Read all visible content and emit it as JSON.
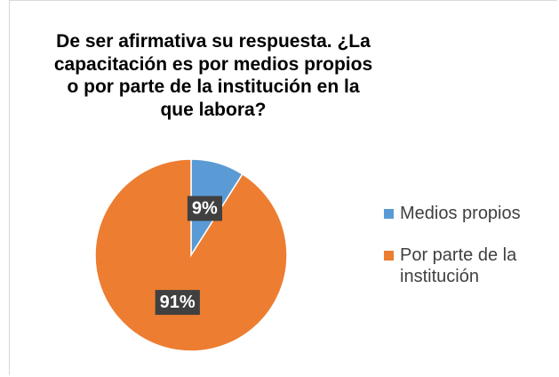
{
  "chart_data": {
    "type": "pie",
    "title": "De ser afirmativa su respuesta. ¿La capacitación es por medios propios o por parte de la institución en la que labora?",
    "categories": [
      "Medios propios",
      "Por parte de la institución"
    ],
    "values": [
      9,
      91
    ],
    "value_labels": [
      "9%",
      "91%"
    ],
    "colors": [
      "#5b9bd5",
      "#ed7d31"
    ],
    "legend": "right"
  }
}
